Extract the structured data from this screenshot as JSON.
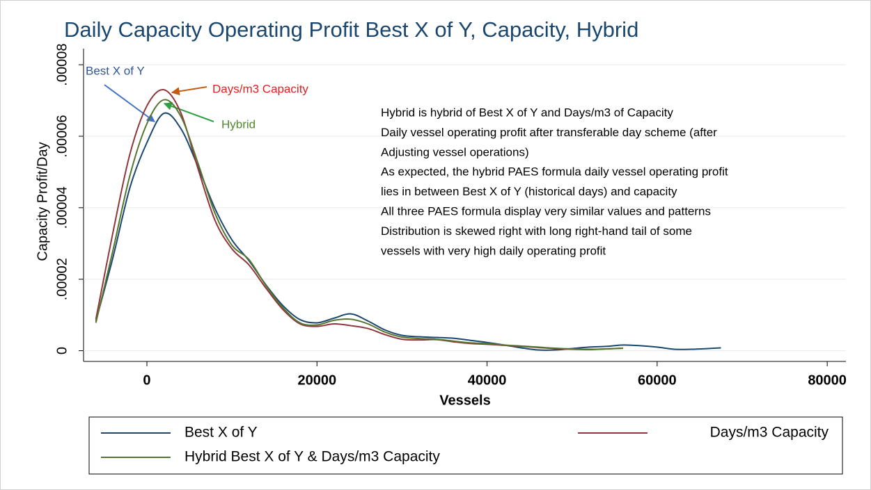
{
  "chart_data": {
    "type": "line",
    "title": "Daily Capacity Operating Profit Best X of Y, Capacity, Hybrid",
    "xlabel": "Vessels",
    "ylabel": "Capacity Profit/Day",
    "xlim": [
      -7450,
      82200
    ],
    "ylim": [
      -3e-06,
      8.45e-05
    ],
    "xticks": [
      0,
      20000,
      40000,
      60000,
      80000
    ],
    "yticks": [
      0,
      {
        "value": 2e-05,
        "label": ".00002"
      },
      {
        "value": 4e-05,
        "label": ".00004"
      },
      {
        "value": 6e-05,
        "label": ".00006"
      },
      {
        "value": 8e-05,
        "label": ".00008"
      }
    ],
    "grid": true,
    "x": [
      -6000,
      -4000,
      -2000,
      0,
      2000,
      4000,
      6000,
      8000,
      10000,
      12000,
      14000,
      16000,
      18000,
      20000,
      22000,
      24000,
      26000,
      28000,
      30000,
      32000,
      34000,
      36000,
      38000,
      40000,
      42000,
      44000,
      46000,
      48000,
      50000,
      52000,
      54000,
      56000,
      58000,
      60000,
      62000,
      64000,
      66000,
      67500
    ],
    "series": [
      {
        "name": "Best X of Y",
        "color": "#1a476f",
        "values": [
          8.3e-06,
          2.6e-05,
          4.56e-05,
          5.82e-05,
          6.64e-05,
          6.21e-05,
          5.15e-05,
          3.98e-05,
          3.1e-05,
          2.52e-05,
          1.84e-05,
          1.26e-05,
          8.7e-06,
          7.8e-06,
          9.1e-06,
          1.03e-05,
          8.3e-06,
          5.8e-06,
          4.3e-06,
          3.9e-06,
          3.7e-06,
          3.5e-06,
          2.9e-06,
          2.3e-06,
          1.6e-06,
          8e-07,
          2e-07,
          2e-07,
          6e-07,
          1e-06,
          1.2e-06,
          1.6e-06,
          1.4e-06,
          1e-06,
          4e-07,
          4e-07,
          6e-07,
          8e-07
        ]
      },
      {
        "name": "Days/m3 Capacity",
        "color": "#90353b",
        "values": [
          8.8e-06,
          3.3e-05,
          5.5e-05,
          6.85e-05,
          7.3e-05,
          6.65e-05,
          5.1e-05,
          3.65e-05,
          2.85e-05,
          2.4e-05,
          1.75e-05,
          1.15e-05,
          7.5e-06,
          6.8e-06,
          7.5e-06,
          7e-06,
          6.2e-06,
          4.5e-06,
          3.2e-06,
          3e-06,
          3.1e-06,
          2.5e-06,
          2e-06,
          1.8e-06,
          1.5e-06,
          1.2e-06,
          9e-07,
          6e-07,
          4e-07,
          3e-07,
          5e-07,
          7e-07,
          null,
          null,
          null,
          null,
          null,
          null
        ]
      },
      {
        "name": "Hybrid Best X of Y & Days/m3 Capacity",
        "color": "#55752f",
        "values": [
          7.8e-06,
          2.8e-05,
          4.9e-05,
          6.35e-05,
          7.02e-05,
          6.55e-05,
          5.25e-05,
          3.85e-05,
          2.95e-05,
          2.55e-05,
          1.82e-05,
          1.2e-05,
          7.8e-06,
          7.2e-06,
          8.5e-06,
          8.8e-06,
          7.5e-06,
          5.2e-06,
          3.8e-06,
          3.4e-06,
          3.2e-06,
          2.7e-06,
          2.2e-06,
          2e-06,
          1.6e-06,
          1.3e-06,
          1e-06,
          7e-07,
          5e-07,
          4e-07,
          5e-07,
          7e-07,
          null,
          null,
          null,
          null,
          null,
          null
        ]
      }
    ],
    "annotations": [
      {
        "text": "Best X of Y",
        "color": "#2f5597"
      },
      {
        "text": "Days/m3 Capacity",
        "color": "#e02020"
      },
      {
        "text": "Hybrid",
        "color": "#4e8a2c"
      }
    ],
    "notes": [
      "Hybrid is hybrid of Best X of Y and Days/m3 of Capacity",
      "Daily vessel operating profit after transferable day scheme (after",
      "Adjusting vessel operations)",
      "As expected, the hybrid PAES formula daily vessel operating profit",
      "lies in between Best X of Y (historical days) and capacity",
      "All three PAES formula display very similar values and patterns",
      "Distribution is skewed right with long right-hand tail of some",
      "vessels with very high daily operating profit"
    ]
  }
}
